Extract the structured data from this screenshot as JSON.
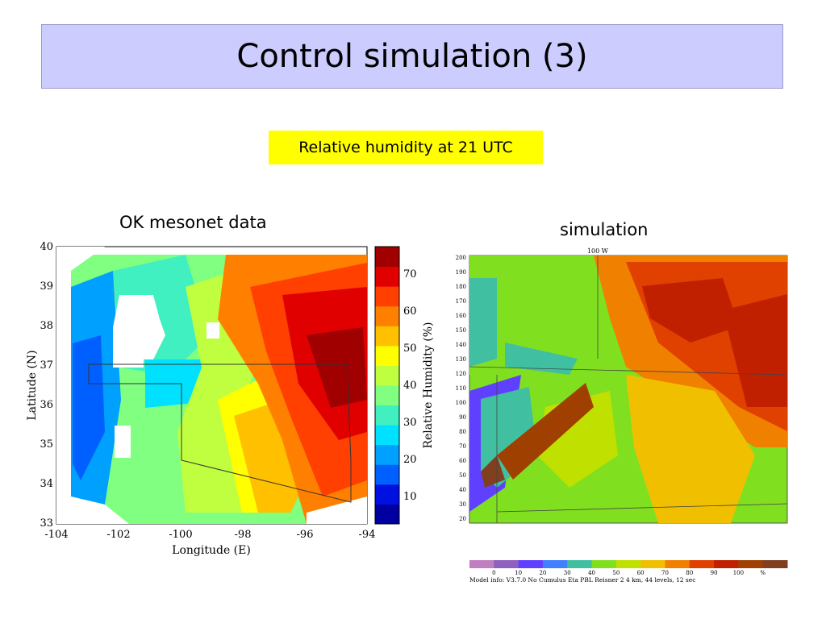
{
  "slide": {
    "title": "Control simulation (3)",
    "subtitle": "Relative humidity at 21 UTC",
    "left_label": "OK mesonet data",
    "right_label": "simulation"
  },
  "left_map": {
    "ylabel": "Latitude (N)",
    "xlabel": "Longitude (E)",
    "colorbar_label": "Relative Humidity (%)",
    "xticks": [
      "-104",
      "-102",
      "-100",
      "-98",
      "-96",
      "-94"
    ],
    "yticks": [
      "40",
      "39",
      "38",
      "37",
      "36",
      "35",
      "34",
      "33"
    ],
    "colorbar_ticks": [
      "70",
      "60",
      "50",
      "40",
      "30",
      "20",
      "10"
    ],
    "colors": [
      "#0000a0",
      "#0010e0",
      "#0060ff",
      "#00a0ff",
      "#00e0ff",
      "#40f0c0",
      "#80ff80",
      "#c0ff40",
      "#ffff00",
      "#ffc000",
      "#ff8000",
      "#ff4000",
      "#e00000",
      "#a00000"
    ]
  },
  "right_map": {
    "top_label": "100 W",
    "yticks": [
      "200",
      "190",
      "180",
      "170",
      "160",
      "150",
      "140",
      "130",
      "120",
      "110",
      "100",
      "90",
      "80",
      "70",
      "60",
      "50",
      "40",
      "30",
      "20"
    ],
    "legend_ticks": [
      "0",
      "10",
      "20",
      "30",
      "40",
      "50",
      "60",
      "70",
      "80",
      "90",
      "100",
      "%"
    ],
    "legend_colors": [
      "#c080c0",
      "#9060c0",
      "#6040ff",
      "#4080ff",
      "#40c0a0",
      "#80e020",
      "#c0e000",
      "#f0c000",
      "#f08000",
      "#e04000",
      "#c02000",
      "#a04000",
      "#804020"
    ],
    "model_info": "Model info: V3.7.0 No Cumulus Eta PBL    Reisner 2    4 km,  44 levels,  12 sec"
  }
}
